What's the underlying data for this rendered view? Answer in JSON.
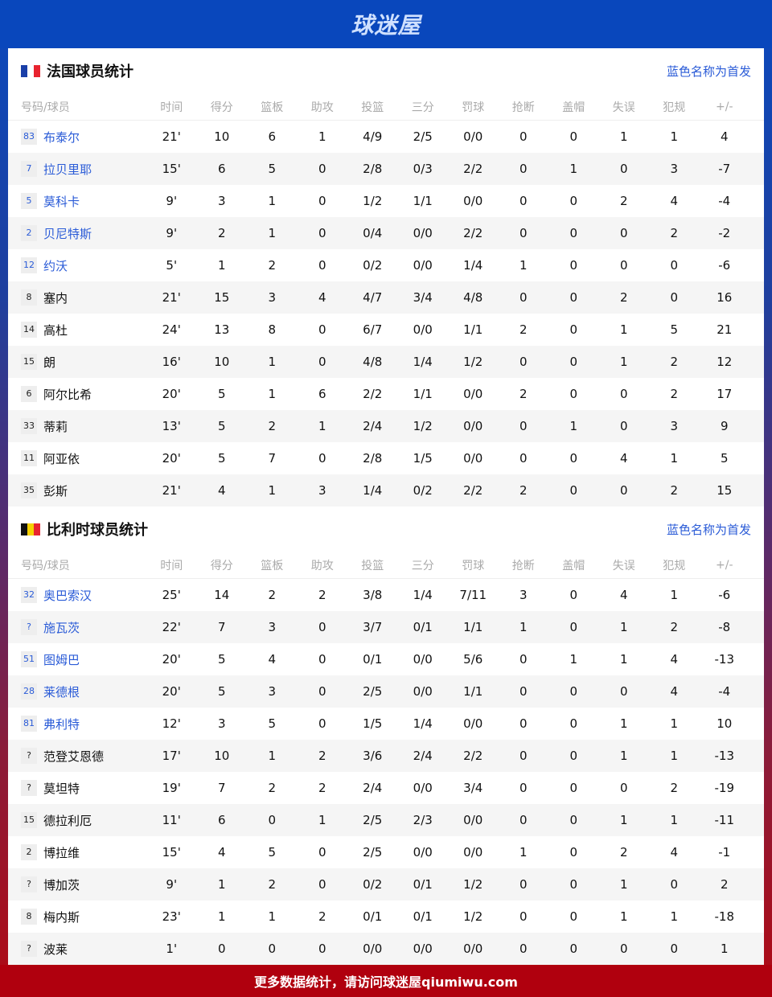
{
  "header": {
    "logo": "球迷屋"
  },
  "columns": [
    "号码/球员",
    "时间",
    "得分",
    "篮板",
    "助攻",
    "投篮",
    "三分",
    "罚球",
    "抢断",
    "盖帽",
    "失误",
    "犯规",
    "+/-"
  ],
  "teams": [
    {
      "title": "法国球员统计",
      "note": "蓝色名称为首发",
      "flag_colors": [
        "#1a3fa8",
        "#ffffff",
        "#e8232f"
      ],
      "players": [
        {
          "num": "83",
          "name": "布泰尔",
          "starter": true,
          "stats": [
            "21'",
            "10",
            "6",
            "1",
            "4/9",
            "2/5",
            "0/0",
            "0",
            "0",
            "1",
            "1",
            "4"
          ]
        },
        {
          "num": "7",
          "name": "拉贝里耶",
          "starter": true,
          "stats": [
            "15'",
            "6",
            "5",
            "0",
            "2/8",
            "0/3",
            "2/2",
            "0",
            "1",
            "0",
            "3",
            "-7"
          ]
        },
        {
          "num": "5",
          "name": "莫科卡",
          "starter": true,
          "stats": [
            "9'",
            "3",
            "1",
            "0",
            "1/2",
            "1/1",
            "0/0",
            "0",
            "0",
            "2",
            "4",
            "-4"
          ]
        },
        {
          "num": "2",
          "name": "贝尼特斯",
          "starter": true,
          "stats": [
            "9'",
            "2",
            "1",
            "0",
            "0/4",
            "0/0",
            "2/2",
            "0",
            "0",
            "0",
            "2",
            "-2"
          ]
        },
        {
          "num": "12",
          "name": "约沃",
          "starter": true,
          "stats": [
            "5'",
            "1",
            "2",
            "0",
            "0/2",
            "0/0",
            "1/4",
            "1",
            "0",
            "0",
            "0",
            "-6"
          ]
        },
        {
          "num": "8",
          "name": "塞内",
          "starter": false,
          "stats": [
            "21'",
            "15",
            "3",
            "4",
            "4/7",
            "3/4",
            "4/8",
            "0",
            "0",
            "2",
            "0",
            "16"
          ]
        },
        {
          "num": "14",
          "name": "高杜",
          "starter": false,
          "stats": [
            "24'",
            "13",
            "8",
            "0",
            "6/7",
            "0/0",
            "1/1",
            "2",
            "0",
            "1",
            "5",
            "21"
          ]
        },
        {
          "num": "15",
          "name": "朗",
          "starter": false,
          "stats": [
            "16'",
            "10",
            "1",
            "0",
            "4/8",
            "1/4",
            "1/2",
            "0",
            "0",
            "1",
            "2",
            "12"
          ]
        },
        {
          "num": "6",
          "name": "阿尔比希",
          "starter": false,
          "stats": [
            "20'",
            "5",
            "1",
            "6",
            "2/2",
            "1/1",
            "0/0",
            "2",
            "0",
            "0",
            "2",
            "17"
          ]
        },
        {
          "num": "33",
          "name": "蒂莉",
          "starter": false,
          "stats": [
            "13'",
            "5",
            "2",
            "1",
            "2/4",
            "1/2",
            "0/0",
            "0",
            "1",
            "0",
            "3",
            "9"
          ]
        },
        {
          "num": "11",
          "name": "阿亚依",
          "starter": false,
          "stats": [
            "20'",
            "5",
            "7",
            "0",
            "2/8",
            "1/5",
            "0/0",
            "0",
            "0",
            "4",
            "1",
            "5"
          ]
        },
        {
          "num": "35",
          "name": "彭斯",
          "starter": false,
          "stats": [
            "21'",
            "4",
            "1",
            "3",
            "1/4",
            "0/2",
            "2/2",
            "2",
            "0",
            "0",
            "2",
            "15"
          ]
        }
      ]
    },
    {
      "title": "比利时球员统计",
      "note": "蓝色名称为首发",
      "flag_colors": [
        "#111111",
        "#f5d000",
        "#e8232f"
      ],
      "players": [
        {
          "num": "32",
          "name": "奥巴索汉",
          "starter": true,
          "stats": [
            "25'",
            "14",
            "2",
            "2",
            "3/8",
            "1/4",
            "7/11",
            "3",
            "0",
            "4",
            "1",
            "-6"
          ]
        },
        {
          "num": "?",
          "name": "施瓦茨",
          "starter": true,
          "stats": [
            "22'",
            "7",
            "3",
            "0",
            "3/7",
            "0/1",
            "1/1",
            "1",
            "0",
            "1",
            "2",
            "-8"
          ]
        },
        {
          "num": "51",
          "name": "图姆巴",
          "starter": true,
          "stats": [
            "20'",
            "5",
            "4",
            "0",
            "0/1",
            "0/0",
            "5/6",
            "0",
            "1",
            "1",
            "4",
            "-13"
          ]
        },
        {
          "num": "28",
          "name": "莱德根",
          "starter": true,
          "stats": [
            "20'",
            "5",
            "3",
            "0",
            "2/5",
            "0/0",
            "1/1",
            "0",
            "0",
            "0",
            "4",
            "-4"
          ]
        },
        {
          "num": "81",
          "name": "弗利特",
          "starter": true,
          "stats": [
            "12'",
            "3",
            "5",
            "0",
            "1/5",
            "1/4",
            "0/0",
            "0",
            "0",
            "1",
            "1",
            "10"
          ]
        },
        {
          "num": "?",
          "name": "范登艾恩德",
          "starter": false,
          "stats": [
            "17'",
            "10",
            "1",
            "2",
            "3/6",
            "2/4",
            "2/2",
            "0",
            "0",
            "1",
            "1",
            "-13"
          ]
        },
        {
          "num": "?",
          "name": "莫坦特",
          "starter": false,
          "stats": [
            "19'",
            "7",
            "2",
            "2",
            "2/4",
            "0/0",
            "3/4",
            "0",
            "0",
            "0",
            "2",
            "-19"
          ]
        },
        {
          "num": "15",
          "name": "德拉利厄",
          "starter": false,
          "stats": [
            "11'",
            "6",
            "0",
            "1",
            "2/5",
            "2/3",
            "0/0",
            "0",
            "0",
            "1",
            "1",
            "-11"
          ]
        },
        {
          "num": "2",
          "name": "博拉维",
          "starter": false,
          "stats": [
            "15'",
            "4",
            "5",
            "0",
            "2/5",
            "0/0",
            "0/0",
            "1",
            "0",
            "2",
            "4",
            "-1"
          ]
        },
        {
          "num": "?",
          "name": "博加茨",
          "starter": false,
          "stats": [
            "9'",
            "1",
            "2",
            "0",
            "0/2",
            "0/1",
            "1/2",
            "0",
            "0",
            "1",
            "0",
            "2"
          ]
        },
        {
          "num": "8",
          "name": "梅内斯",
          "starter": false,
          "stats": [
            "23'",
            "1",
            "1",
            "2",
            "0/1",
            "0/1",
            "1/2",
            "0",
            "0",
            "1",
            "1",
            "-18"
          ]
        },
        {
          "num": "?",
          "name": "波莱",
          "starter": false,
          "stats": [
            "1'",
            "0",
            "0",
            "0",
            "0/0",
            "0/0",
            "0/0",
            "0",
            "0",
            "0",
            "0",
            "1"
          ]
        }
      ]
    }
  ],
  "footer": {
    "text": "更多数据统计，请访问球迷屋qiumiwu.com"
  }
}
